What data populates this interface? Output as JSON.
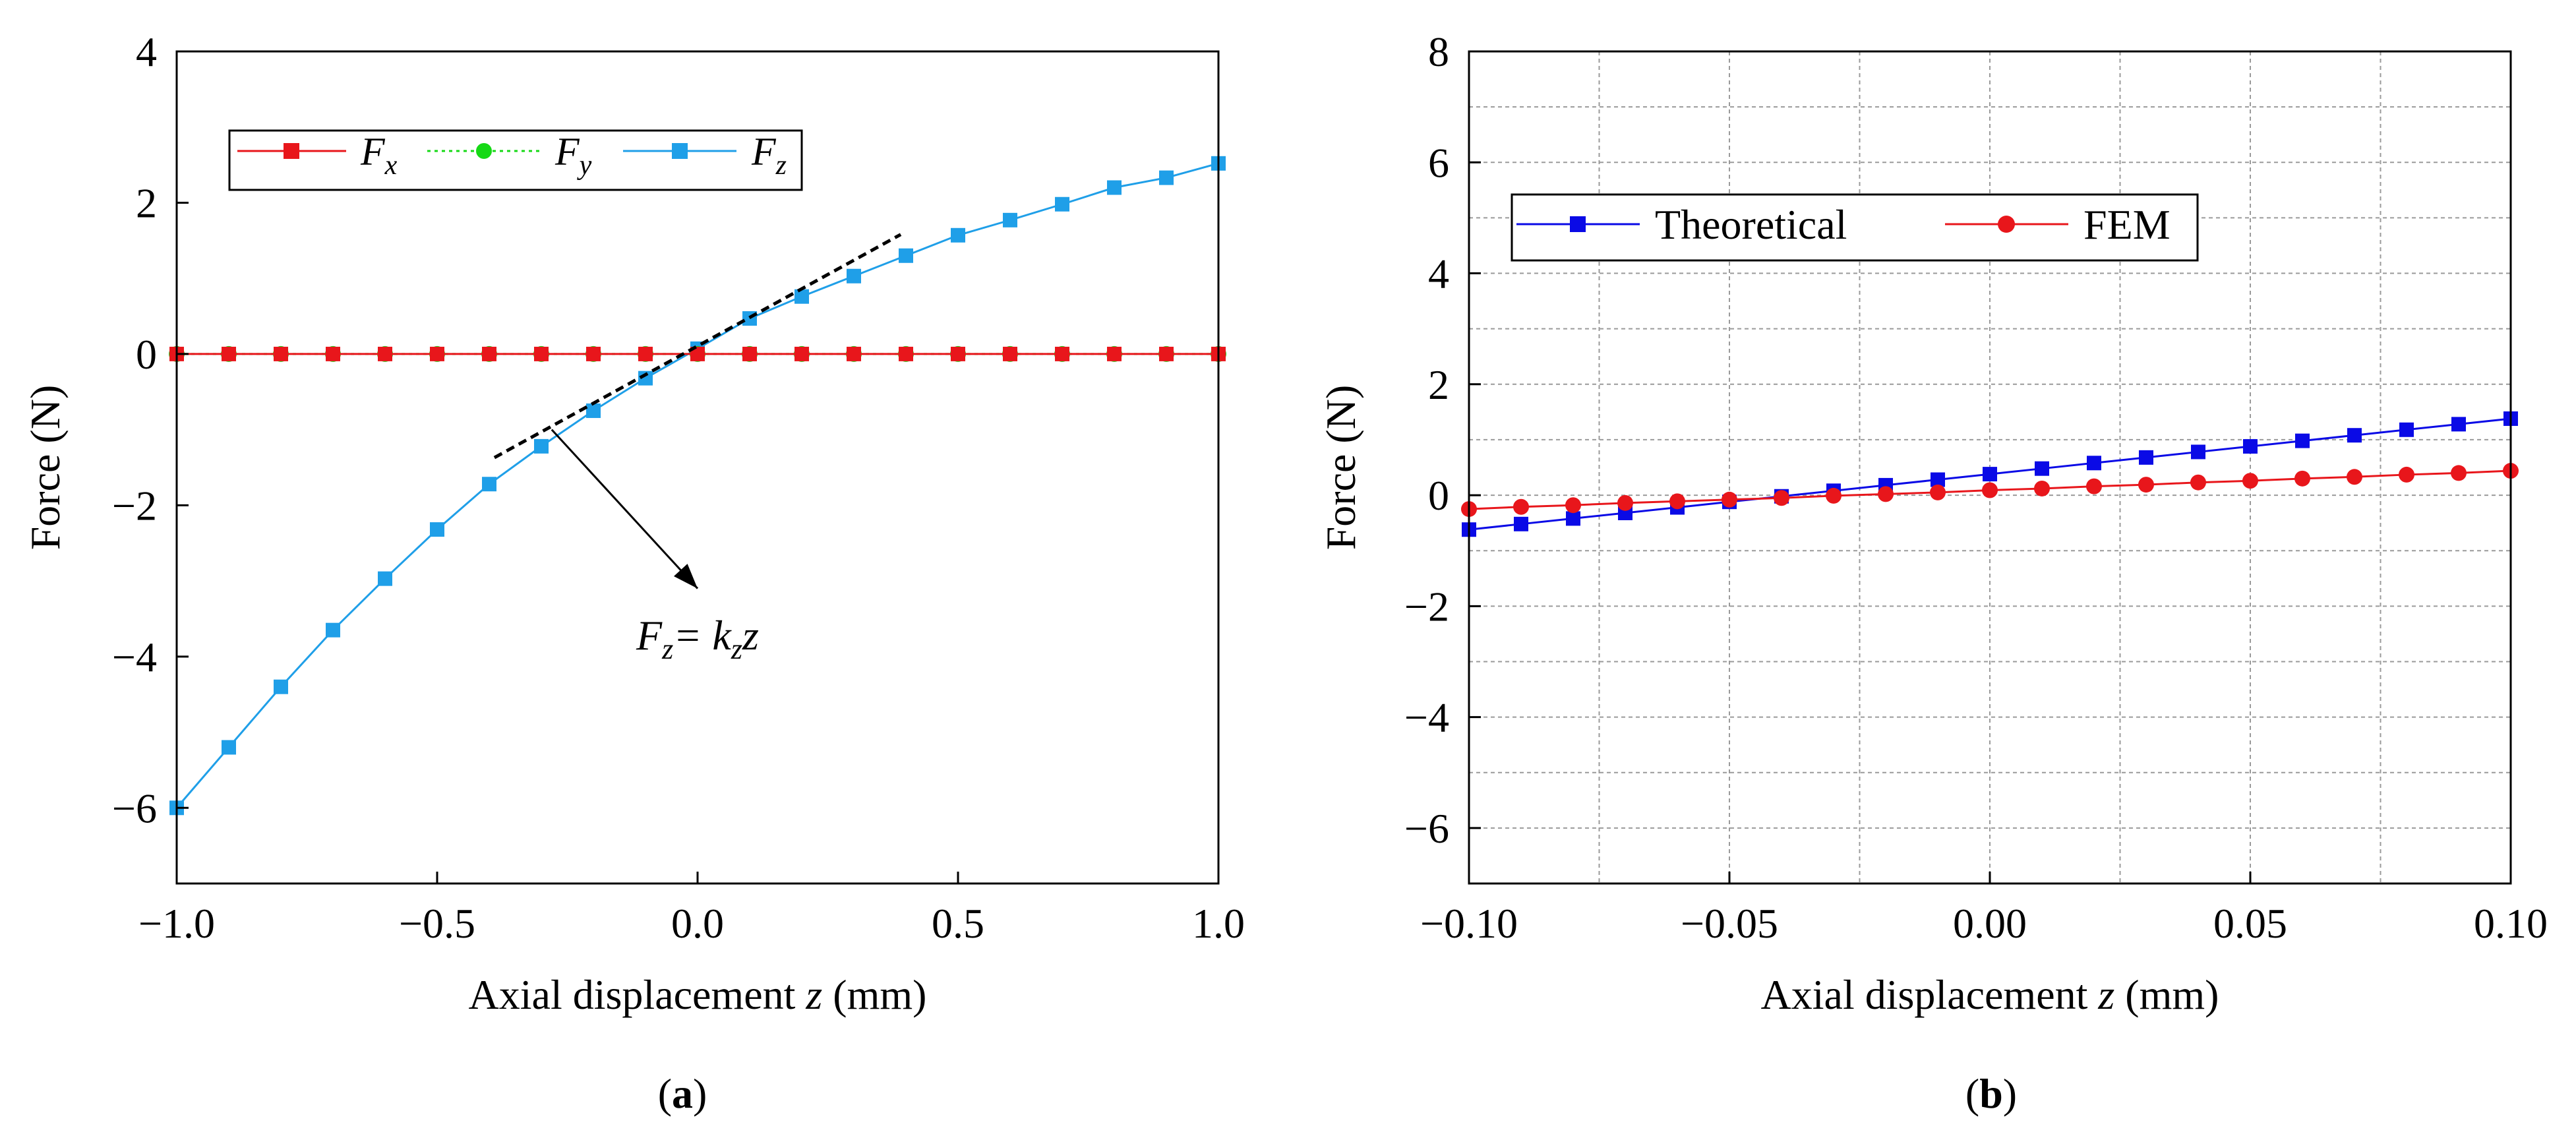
{
  "figure": {
    "panel_a_caption": "a",
    "panel_b_caption": "b"
  },
  "chart_data": [
    {
      "panel": "a",
      "type": "line",
      "xlabel_prefix": "Axial displacement ",
      "xlabel_var": "z",
      "xlabel_suffix": " (mm)",
      "ylabel": "Force (N)",
      "xlim": [
        -1.0,
        1.0
      ],
      "ylim": [
        -7,
        4
      ],
      "xticks": [
        -1.0,
        -0.5,
        0.0,
        0.5,
        1.0
      ],
      "xtick_labels": [
        "−1.0",
        "−0.5",
        "0.0",
        "0.5",
        "1.0"
      ],
      "yticks": [
        -6,
        -4,
        -2,
        0,
        2,
        4
      ],
      "ytick_labels": [
        "−6",
        "−4",
        "−2",
        "0",
        "2",
        "4"
      ],
      "grid": false,
      "legend_position": "top-left",
      "x": [
        -1.0,
        -0.9,
        -0.8,
        -0.7,
        -0.6,
        -0.5,
        -0.4,
        -0.3,
        -0.2,
        -0.1,
        0.0,
        0.1,
        0.2,
        0.3,
        0.4,
        0.5,
        0.6,
        0.7,
        0.8,
        0.9,
        1.0
      ],
      "series": [
        {
          "name": "F",
          "subscript": "x",
          "color": "#e8161b",
          "marker": "square",
          "dash": "solid",
          "values": [
            0,
            0,
            0,
            0,
            0,
            0,
            0,
            0,
            0,
            0,
            0,
            0,
            0,
            0,
            0,
            0,
            0,
            0,
            0,
            0,
            0
          ]
        },
        {
          "name": "F",
          "subscript": "y",
          "color": "#16d916",
          "marker": "circle",
          "dash": "dotted",
          "values": [
            0,
            0,
            0,
            0,
            0,
            0,
            0,
            0,
            0,
            0,
            0,
            0,
            0,
            0,
            0,
            0,
            0,
            0,
            0,
            0,
            0
          ]
        },
        {
          "name": "F",
          "subscript": "z",
          "color": "#1f9fe8",
          "marker": "square",
          "dash": "solid",
          "values": [
            -6.0,
            -5.2,
            -4.4,
            -3.65,
            -2.97,
            -2.32,
            -1.72,
            -1.22,
            -0.75,
            -0.32,
            0.07,
            0.47,
            0.76,
            1.03,
            1.3,
            1.57,
            1.77,
            1.98,
            2.2,
            2.33,
            2.52
          ]
        }
      ],
      "tangent_line": {
        "x": [
          -0.39,
          0.39
        ],
        "y": [
          -1.37,
          1.58
        ]
      },
      "annotation": {
        "parts": [
          "F",
          "z",
          "= k",
          "z",
          "z"
        ],
        "arrow_from": [
          -0.28,
          -1.0
        ],
        "arrow_to": [
          0.0,
          -3.1
        ],
        "text_at": [
          0.0,
          -3.7
        ]
      }
    },
    {
      "panel": "b",
      "type": "line",
      "xlabel_prefix": "Axial displacement ",
      "xlabel_var": "z",
      "xlabel_suffix": " (mm)",
      "ylabel": "Force (N)",
      "xlim": [
        -0.1,
        0.1
      ],
      "ylim": [
        -7,
        8
      ],
      "xticks": [
        -0.1,
        -0.05,
        0.0,
        0.05,
        0.1
      ],
      "xtick_labels": [
        "−0.10",
        "−0.05",
        "0.00",
        "0.05",
        "0.10"
      ],
      "yticks": [
        -6,
        -4,
        -2,
        0,
        2,
        4,
        6,
        8
      ],
      "ytick_labels": [
        "−6",
        "−4",
        "−2",
        "0",
        "2",
        "4",
        "6",
        "8"
      ],
      "grid": true,
      "grid_x": [
        -0.075,
        -0.025,
        0.025,
        0.075
      ],
      "grid_y": [
        -5,
        -3,
        -1,
        1,
        3,
        5,
        7
      ],
      "legend_position": "top-left",
      "x": [
        -0.1,
        -0.09,
        -0.08,
        -0.07,
        -0.06,
        -0.05,
        -0.04,
        -0.03,
        -0.02,
        -0.01,
        0.0,
        0.01,
        0.02,
        0.03,
        0.04,
        0.05,
        0.06,
        0.07,
        0.08,
        0.09,
        0.1
      ],
      "series": [
        {
          "name": "Theoretical",
          "color": "#0a0ae6",
          "marker": "square",
          "dash": "solid",
          "values": [
            -0.62,
            -0.52,
            -0.42,
            -0.32,
            -0.22,
            -0.12,
            -0.02,
            0.08,
            0.18,
            0.28,
            0.38,
            0.48,
            0.58,
            0.68,
            0.78,
            0.88,
            0.98,
            1.08,
            1.18,
            1.28,
            1.38
          ]
        },
        {
          "name": "FEM",
          "color": "#e8161b",
          "marker": "circle",
          "dash": "solid",
          "values": [
            -0.25,
            -0.21,
            -0.18,
            -0.14,
            -0.11,
            -0.08,
            -0.05,
            -0.01,
            0.02,
            0.05,
            0.09,
            0.12,
            0.16,
            0.19,
            0.23,
            0.26,
            0.3,
            0.33,
            0.37,
            0.4,
            0.44
          ]
        }
      ]
    }
  ]
}
